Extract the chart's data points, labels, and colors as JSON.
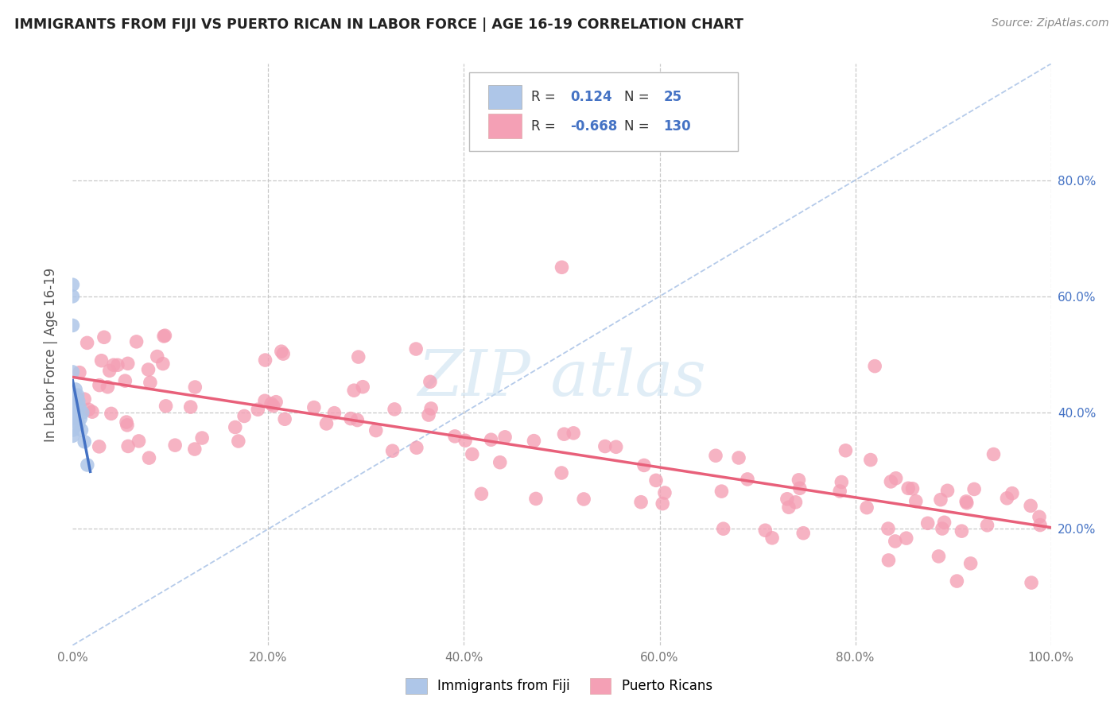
{
  "title": "IMMIGRANTS FROM FIJI VS PUERTO RICAN IN LABOR FORCE | AGE 16-19 CORRELATION CHART",
  "source": "Source: ZipAtlas.com",
  "ylabel": "In Labor Force | Age 16-19",
  "xlim": [
    0.0,
    1.0
  ],
  "ylim": [
    0.0,
    1.0
  ],
  "fiji_R": 0.124,
  "fiji_N": 25,
  "pr_R": -0.668,
  "pr_N": 130,
  "fiji_color": "#aec6e8",
  "pr_color": "#f4a0b5",
  "fiji_line_color": "#4472c4",
  "pr_line_color": "#e8607a",
  "diagonal_color": "#aec6e8",
  "background_color": "#ffffff",
  "grid_color": "#c8c8c8",
  "right_tick_color": "#4472c4",
  "watermark_color": "#c8dff0"
}
